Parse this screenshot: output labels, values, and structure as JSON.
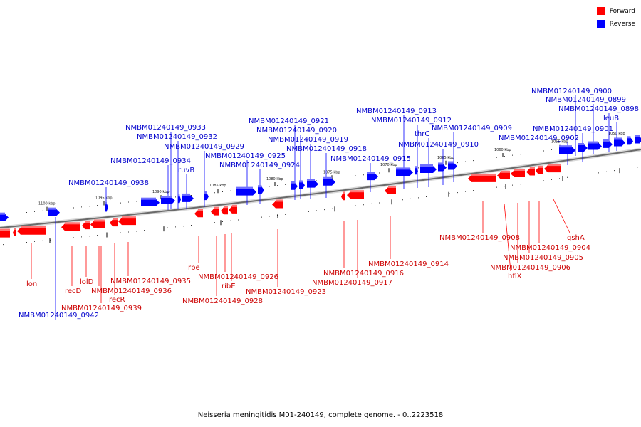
{
  "legend": {
    "forward": {
      "label": "Forward",
      "color": "#ff0000"
    },
    "reverse": {
      "label": "Reverse",
      "color": "#0000ff"
    }
  },
  "caption": "Neisseria meningitidis M01-240149, complete genome. - 0..2223518",
  "scale_labels": [
    "1100 kbp",
    "1095 kbp",
    "1090 kbp",
    "1085 kbp",
    "1080 kbp",
    "1075 kbp",
    "1070 kbp",
    "1065 kbp",
    "1060 kbp",
    "1055 kbp",
    "1050 kbp"
  ],
  "genes": {
    "forward": [
      "lon",
      "recD",
      "lolD",
      "recR",
      "NMBM01240149_0935",
      "NMBM01240149_0936",
      "NMBM01240149_0939",
      "rpe",
      "NMBM01240149_0926",
      "ribE",
      "NMBM01240149_0928",
      "NMBM01240149_0923",
      "NMBM01240149_0914",
      "NMBM01240149_0916",
      "NMBM01240149_0917",
      "NMBM01240149_0908",
      "gshA",
      "NMBM01240149_0904",
      "NMBM01240149_0905",
      "NMBM01240149_0906",
      "hflX"
    ],
    "reverse": [
      "NMBM01240149_0942",
      "NMBM01240149_0938",
      "NMBM01240149_0934",
      "ruvB",
      "NMBM01240149_0933",
      "NMBM01240149_0932",
      "NMBM01240149_0929",
      "NMBM01240149_0925",
      "NMBM01240149_0924",
      "NMBM01240149_0921",
      "NMBM01240149_0920",
      "NMBM01240149_0919",
      "NMBM01240149_0918",
      "NMBM01240149_0915",
      "NMBM01240149_0913",
      "NMBM01240149_0912",
      "thrC",
      "NMBM01240149_0910",
      "NMBM01240149_0909",
      "NMBM01240149_0902",
      "NMBM01240149_0901",
      "NMBM01240149_0900",
      "NMBM01240149_0899",
      "NMBM01240149_0898",
      "leuB"
    ]
  }
}
